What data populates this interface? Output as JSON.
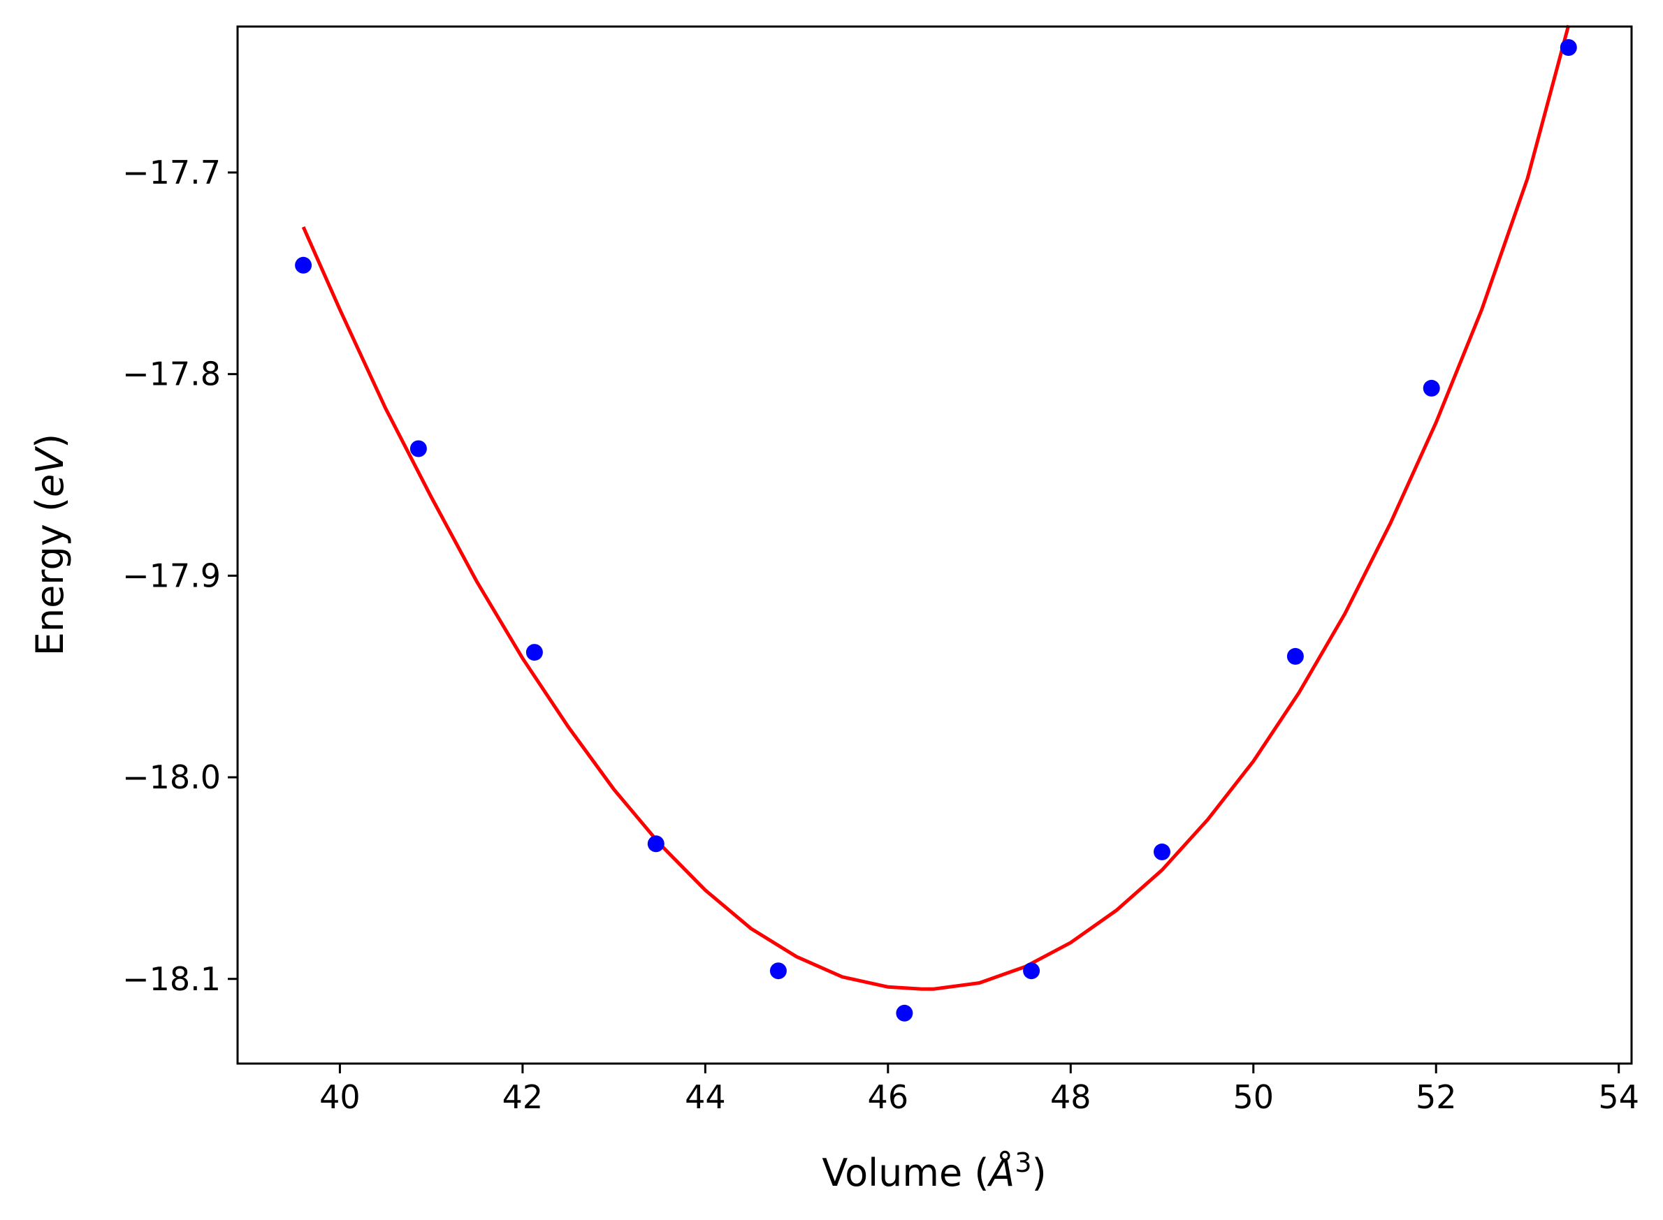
{
  "chart_data": {
    "type": "scatter",
    "title": "",
    "xlabel": "Volume (",
    "xlabel_symbol": "Å",
    "xlabel_exp": "3",
    "xlabel_close": ")",
    "ylabel": "Energy (",
    "ylabel_unit": "eV",
    "ylabel_close": ")",
    "xlim": [
      38.88,
      54.14
    ],
    "ylim": [
      -18.142,
      -17.6276
    ],
    "x_ticks": [
      40,
      42,
      44,
      46,
      48,
      50,
      52,
      54
    ],
    "x_tick_labels": [
      "40",
      "42",
      "44",
      "46",
      "48",
      "50",
      "52",
      "54"
    ],
    "y_ticks": [
      -17.7,
      -17.8,
      -17.9,
      -18.0,
      -18.1
    ],
    "y_tick_labels": [
      "−17.7",
      "−17.8",
      "−17.9",
      "−18.0",
      "−18.1"
    ],
    "grid": false,
    "colors": {
      "points": "#0000ff",
      "fit": "#ff0000",
      "axes": "#000000"
    },
    "series": [
      {
        "kind": "points",
        "x": [
          39.6,
          40.86,
          42.13,
          43.46,
          44.8,
          46.18,
          47.57,
          49.0,
          50.46,
          51.95,
          53.45
        ],
        "y": [
          -17.746,
          -17.837,
          -17.938,
          -18.033,
          -18.096,
          -18.117,
          -18.096,
          -18.037,
          -17.94,
          -17.807,
          -17.638
        ]
      },
      {
        "kind": "fit-line",
        "x": [
          39.6,
          40.0,
          40.5,
          41.0,
          41.5,
          42.0,
          42.5,
          43.0,
          43.5,
          44.0,
          44.5,
          45.0,
          45.5,
          46.0,
          46.37,
          46.5,
          47.0,
          47.5,
          48.0,
          48.5,
          49.0,
          49.5,
          50.0,
          50.5,
          51.0,
          51.5,
          52.0,
          52.5,
          53.0,
          53.45
        ],
        "y": [
          -17.727,
          -17.768,
          -17.817,
          -17.861,
          -17.903,
          -17.941,
          -17.975,
          -18.006,
          -18.033,
          -18.056,
          -18.075,
          -18.089,
          -18.099,
          -18.104,
          -18.105,
          -18.105,
          -18.102,
          -18.094,
          -18.082,
          -18.066,
          -18.046,
          -18.021,
          -17.992,
          -17.958,
          -17.919,
          -17.874,
          -17.824,
          -17.768,
          -17.703,
          -17.627
        ]
      }
    ]
  }
}
